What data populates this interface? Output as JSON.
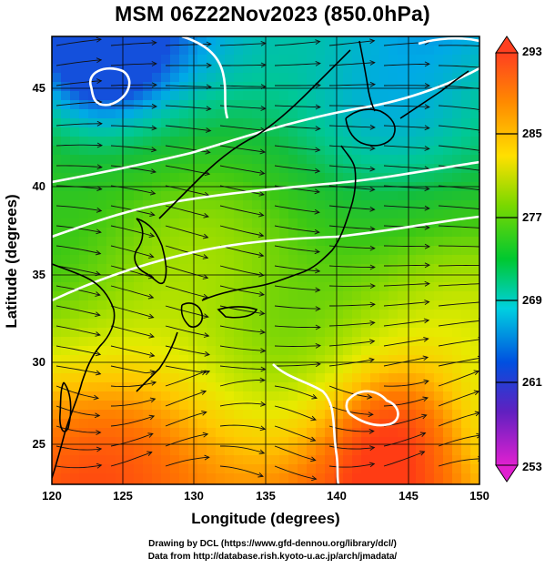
{
  "title": "MSM 06Z22Nov2023 (850.0hPa)",
  "axes": {
    "xlabel": "Longitude (degrees)",
    "ylabel": "Latitude  (degrees)",
    "x_ticks": [
      "120",
      "125",
      "130",
      "135",
      "140",
      "145",
      "150"
    ],
    "y_ticks": [
      "45",
      "40",
      "35",
      "30",
      "25"
    ]
  },
  "colorbar": {
    "labels": [
      "293",
      "285",
      "277",
      "269",
      "261",
      "253"
    ],
    "colors": [
      "#e8d040",
      "#2c7ad8",
      "#a4dc28",
      "#d070d0",
      "#f0a020",
      "#40c8e0",
      "#2040c0",
      "#e03010",
      "#30c850"
    ]
  },
  "chart_data": {
    "type": "heatmap",
    "field": "temperature with streamlines",
    "level_hPa": 850.0,
    "time": "06Z22Nov2023",
    "x_range": [
      120,
      150
    ],
    "y_range": [
      22.5,
      47.5
    ],
    "value_range": [
      253,
      293
    ],
    "colorbar_ticks": [
      293,
      285,
      277,
      269,
      261,
      253
    ]
  },
  "credits": {
    "line1": "Drawing by DCL (https://www.gfd-dennou.org/library/dcl/)",
    "line2": "Data from http://database.rish.kyoto-u.ac.jp/arch/jmadata/"
  }
}
